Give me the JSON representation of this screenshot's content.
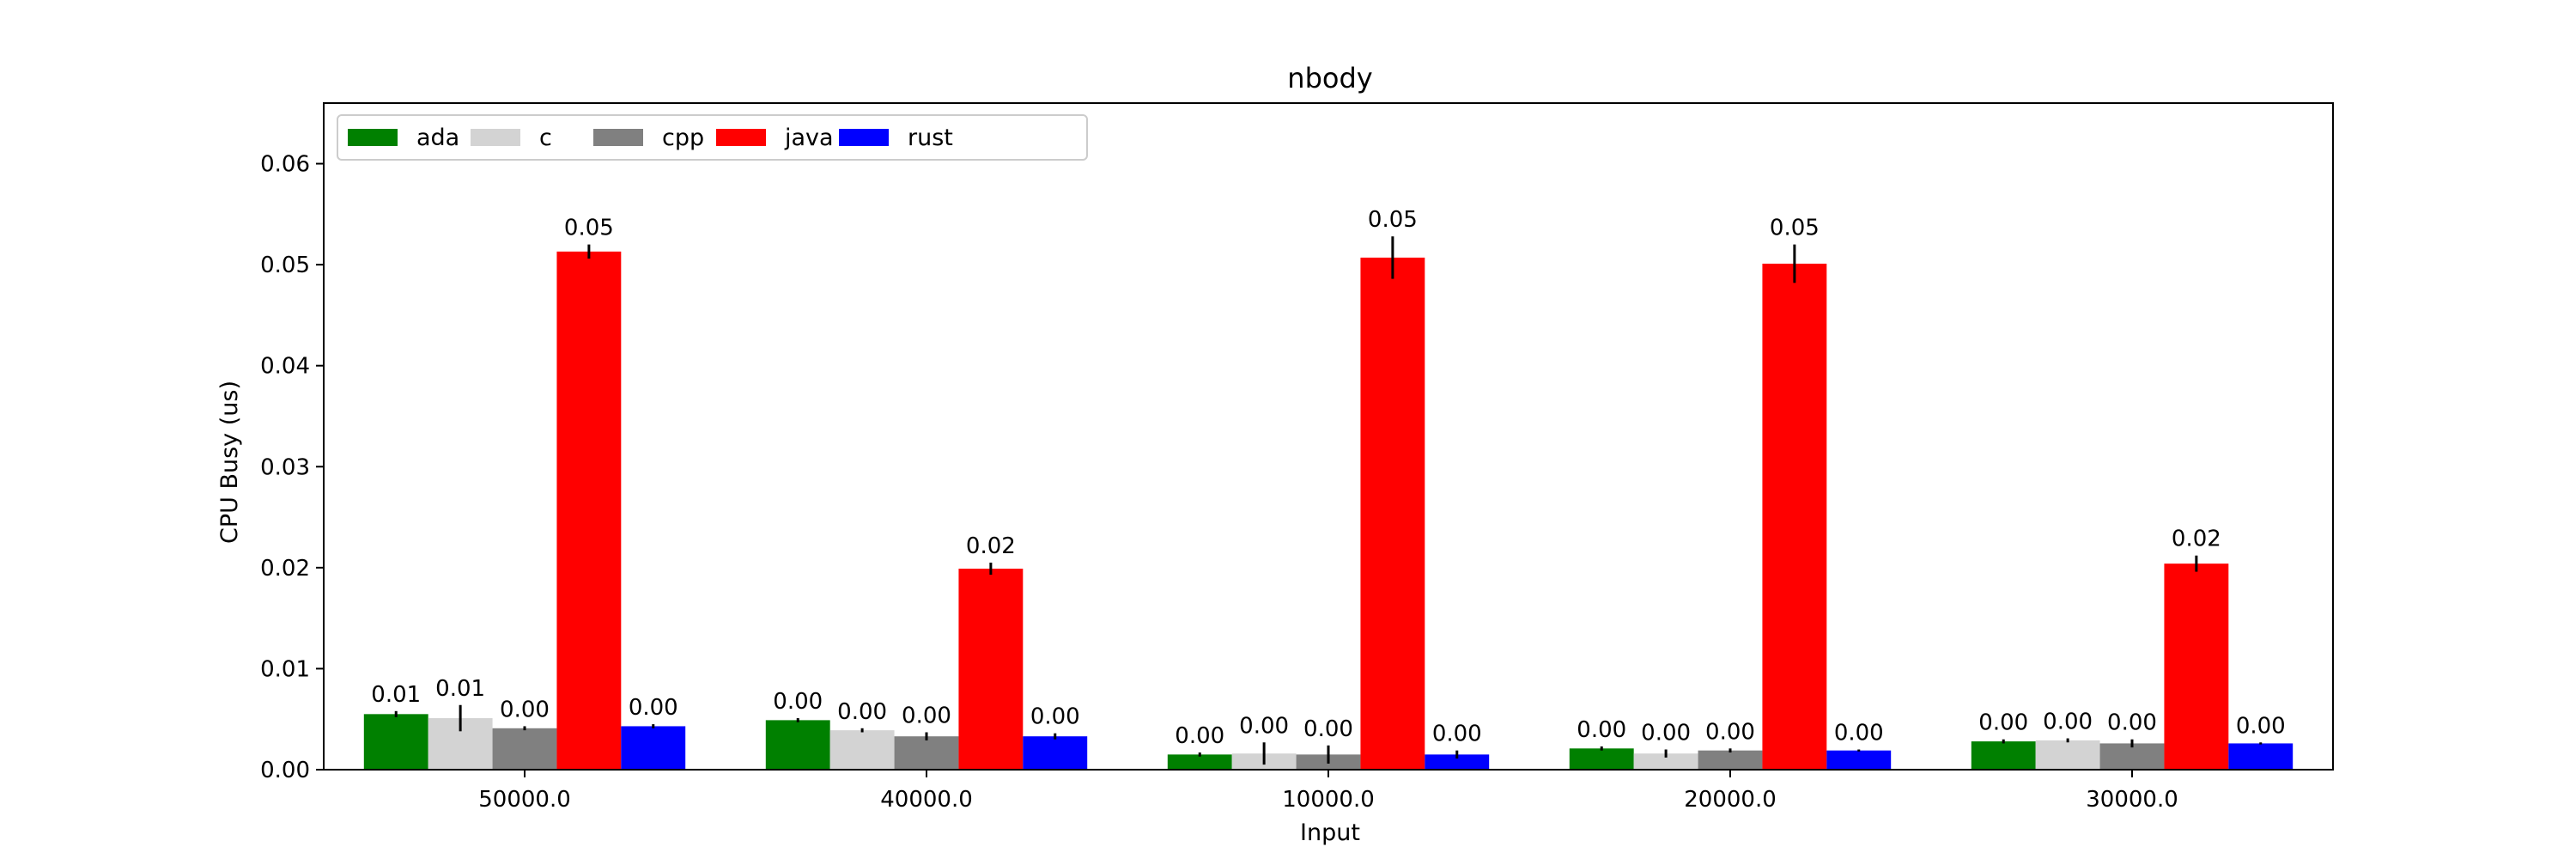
{
  "chart_data": {
    "type": "bar",
    "title": "nbody",
    "xlabel": "Input",
    "ylabel": "CPU Busy (us)",
    "categories": [
      "50000.0",
      "40000.0",
      "10000.0",
      "20000.0",
      "30000.0"
    ],
    "ylim": [
      0,
      0.066
    ],
    "yticks": [
      "0.00",
      "0.01",
      "0.02",
      "0.03",
      "0.04",
      "0.05",
      "0.06"
    ],
    "legend_position": "top-left",
    "grid": false,
    "series": [
      {
        "name": "ada",
        "color": "#008000",
        "values": [
          0.0055,
          0.0049,
          0.0015,
          0.0021,
          0.0028
        ],
        "errors": [
          0.0003,
          0.0002,
          0.0002,
          0.0002,
          0.0002
        ],
        "labels": [
          "0.01",
          "0.00",
          "0.00",
          "0.00",
          "0.00"
        ]
      },
      {
        "name": "c",
        "color": "#d3d3d3",
        "values": [
          0.0051,
          0.0039,
          0.0016,
          0.0016,
          0.0029
        ],
        "errors": [
          0.0013,
          0.0002,
          0.0011,
          0.0004,
          0.0002
        ],
        "labels": [
          "0.01",
          "0.00",
          "0.00",
          "0.00",
          "0.00"
        ]
      },
      {
        "name": "cpp",
        "color": "#808080",
        "values": [
          0.0041,
          0.0033,
          0.0015,
          0.0019,
          0.0026
        ],
        "errors": [
          0.0002,
          0.0004,
          0.0009,
          0.0002,
          0.0004
        ],
        "labels": [
          "0.00",
          "0.00",
          "0.00",
          "0.00",
          "0.00"
        ]
      },
      {
        "name": "java",
        "color": "#ff0000",
        "values": [
          0.0513,
          0.0199,
          0.0507,
          0.0501,
          0.0204
        ],
        "errors": [
          0.0007,
          0.0006,
          0.0021,
          0.0019,
          0.0008
        ],
        "labels": [
          "0.05",
          "0.02",
          "0.05",
          "0.05",
          "0.02"
        ]
      },
      {
        "name": "rust",
        "color": "#0000ff",
        "values": [
          0.0043,
          0.0033,
          0.0015,
          0.0019,
          0.0026
        ],
        "errors": [
          0.0002,
          0.0003,
          0.0004,
          0.0001,
          0.0001
        ],
        "labels": [
          "0.00",
          "0.00",
          "0.00",
          "0.00",
          "0.00"
        ]
      }
    ]
  }
}
